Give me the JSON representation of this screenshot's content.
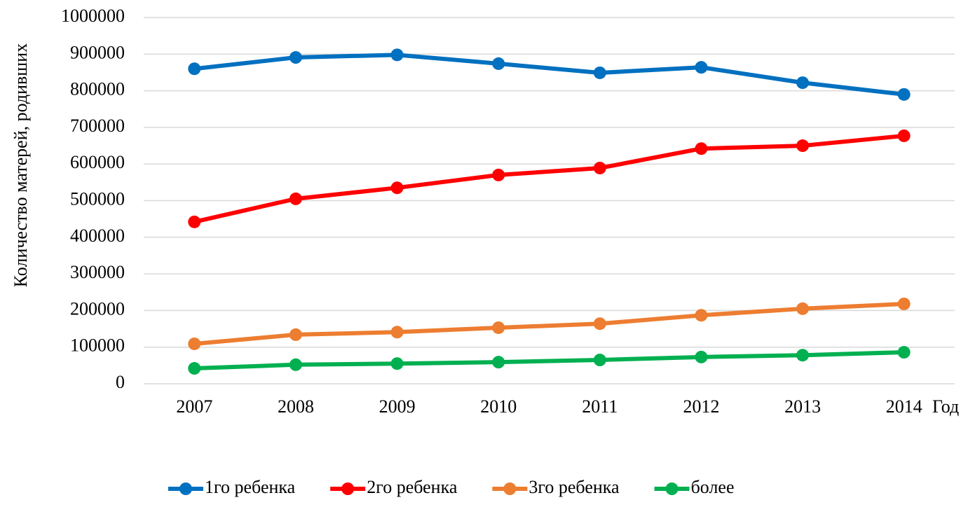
{
  "chart_data": {
    "type": "line",
    "y_label": "Количество матерей, родивших",
    "x_label": "Год",
    "categories": [
      "2007",
      "2008",
      "2009",
      "2010",
      "2011",
      "2012",
      "2013",
      "2014"
    ],
    "series": [
      {
        "name": "1го ребенка",
        "color": "#0070c0",
        "values": [
          860000,
          891000,
          898000,
          874000,
          849000,
          864000,
          822000,
          790000
        ]
      },
      {
        "name": "2го ребенка",
        "color": "#ff0000",
        "values": [
          442000,
          505000,
          535000,
          570000,
          589000,
          642000,
          650000,
          677000
        ]
      },
      {
        "name": "3го ребенка",
        "color": "#ed7d31",
        "values": [
          109000,
          134000,
          141000,
          153000,
          164000,
          187000,
          205000,
          218000
        ]
      },
      {
        "name": "более",
        "color": "#00b050",
        "values": [
          42000,
          52000,
          55000,
          59000,
          65000,
          73000,
          78000,
          86000
        ]
      }
    ],
    "ylim": [
      0,
      1000000
    ],
    "yticks": [
      0,
      100000,
      200000,
      300000,
      400000,
      500000,
      600000,
      700000,
      800000,
      900000,
      1000000
    ],
    "grid": true,
    "legend": "bottom"
  }
}
